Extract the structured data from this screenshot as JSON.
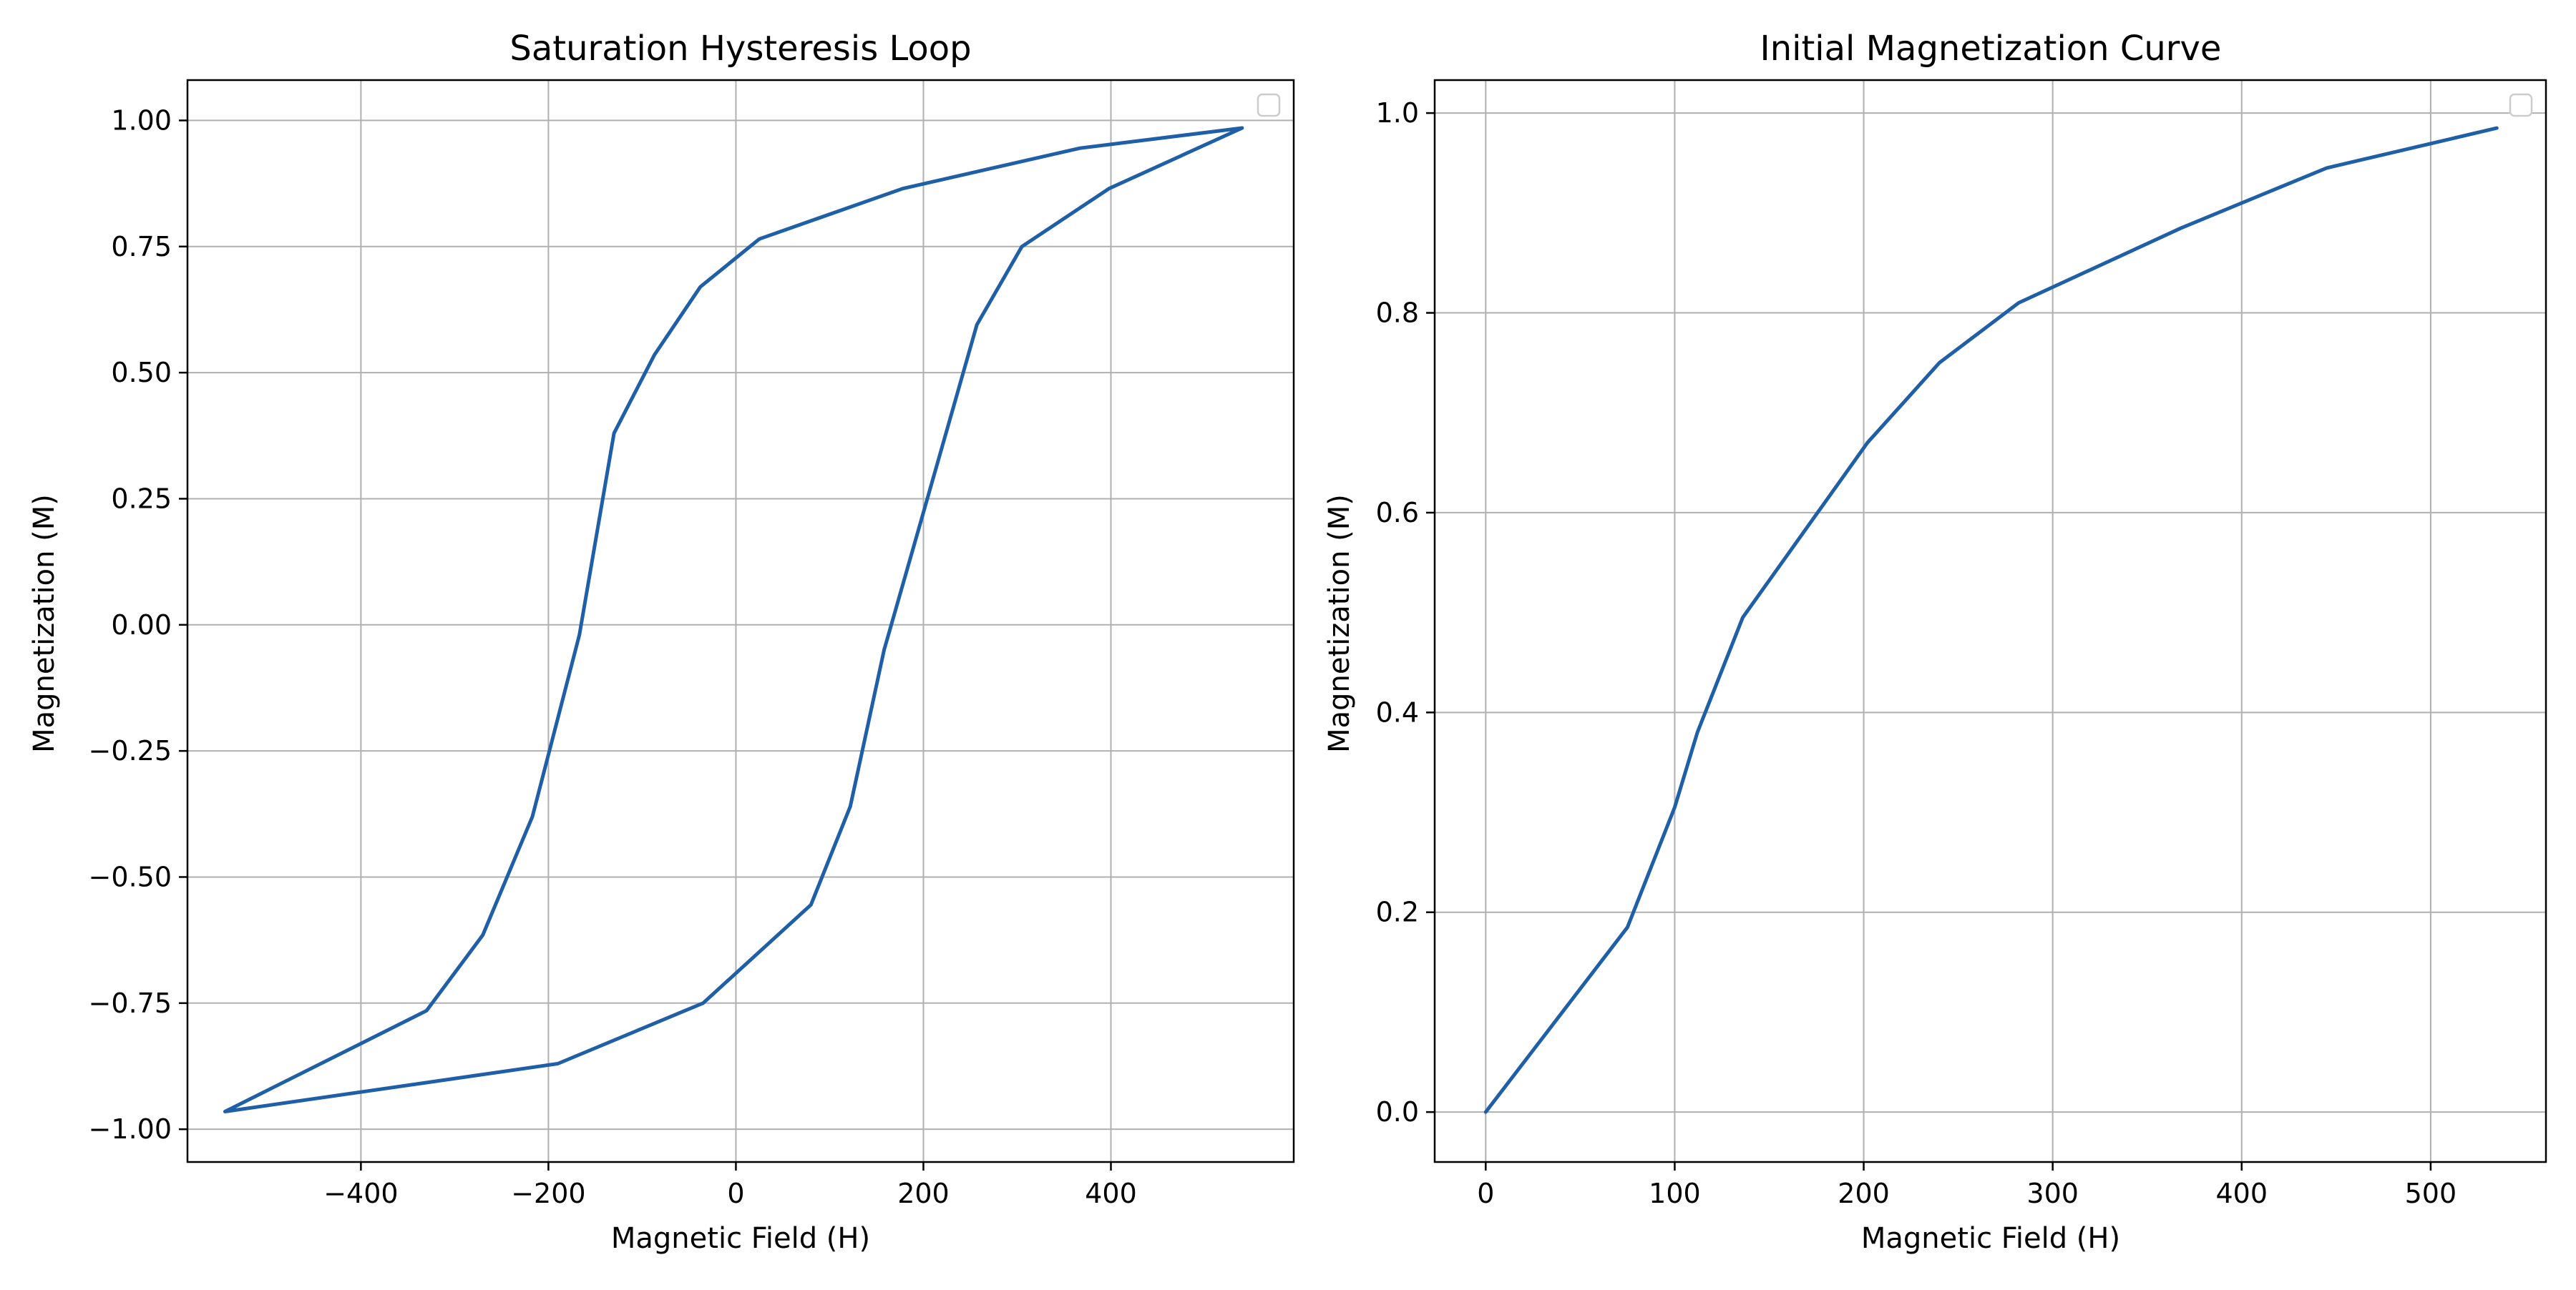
{
  "colors": {
    "line": "#1f5fa8",
    "grid": "#b0b0b0",
    "axes": "#000000",
    "background": "#ffffff"
  },
  "chart_data": [
    {
      "type": "line",
      "title": "Saturation Hysteresis Loop",
      "xlabel": "Magnetic Field (H)",
      "ylabel": "Magnetization (M)",
      "xlim": [
        -585,
        595
      ],
      "ylim": [
        -1.065,
        1.08
      ],
      "xticks": [
        -400,
        -200,
        0,
        200,
        400
      ],
      "xtick_labels": [
        "−400",
        "−200",
        "0",
        "200",
        "400"
      ],
      "yticks": [
        -1.0,
        -0.75,
        -0.5,
        -0.25,
        0.0,
        0.25,
        0.5,
        0.75,
        1.0
      ],
      "ytick_labels": [
        "−1.00",
        "−0.75",
        "−0.50",
        "−0.25",
        "0.00",
        "0.25",
        "0.50",
        "0.75",
        "1.00"
      ],
      "grid": true,
      "legend": "top-right (empty)",
      "series": [
        {
          "x": [
            540,
            367,
            178,
            25,
            -38,
            -87,
            -130,
            -167,
            -217,
            -270,
            -330,
            -545,
            -190,
            -35,
            80,
            122,
            158,
            198,
            257,
            305,
            398,
            540
          ],
          "y": [
            0.985,
            0.945,
            0.865,
            0.765,
            0.67,
            0.535,
            0.38,
            -0.02,
            -0.38,
            -0.615,
            -0.765,
            -0.965,
            -0.87,
            -0.75,
            -0.555,
            -0.36,
            -0.05,
            0.21,
            0.595,
            0.75,
            0.865,
            0.985
          ]
        }
      ]
    },
    {
      "type": "line",
      "title": "Initial Magnetization Curve",
      "xlabel": "Magnetic Field (H)",
      "ylabel": "Magnetization (M)",
      "xlim": [
        -27,
        561
      ],
      "ylim": [
        -0.05,
        1.033
      ],
      "xticks": [
        0,
        100,
        200,
        300,
        400,
        500
      ],
      "xtick_labels": [
        "0",
        "100",
        "200",
        "300",
        "400",
        "500"
      ],
      "yticks": [
        0.0,
        0.2,
        0.4,
        0.6,
        0.8,
        1.0
      ],
      "ytick_labels": [
        "0.0",
        "0.2",
        "0.4",
        "0.6",
        "0.8",
        "1.0"
      ],
      "grid": true,
      "legend": "top-right (empty)",
      "series": [
        {
          "x": [
            0,
            75,
            100,
            112,
            136,
            202,
            240,
            282,
            368,
            445,
            535
          ],
          "y": [
            0.0,
            0.185,
            0.305,
            0.38,
            0.495,
            0.67,
            0.75,
            0.81,
            0.885,
            0.945,
            0.985
          ]
        }
      ]
    }
  ]
}
